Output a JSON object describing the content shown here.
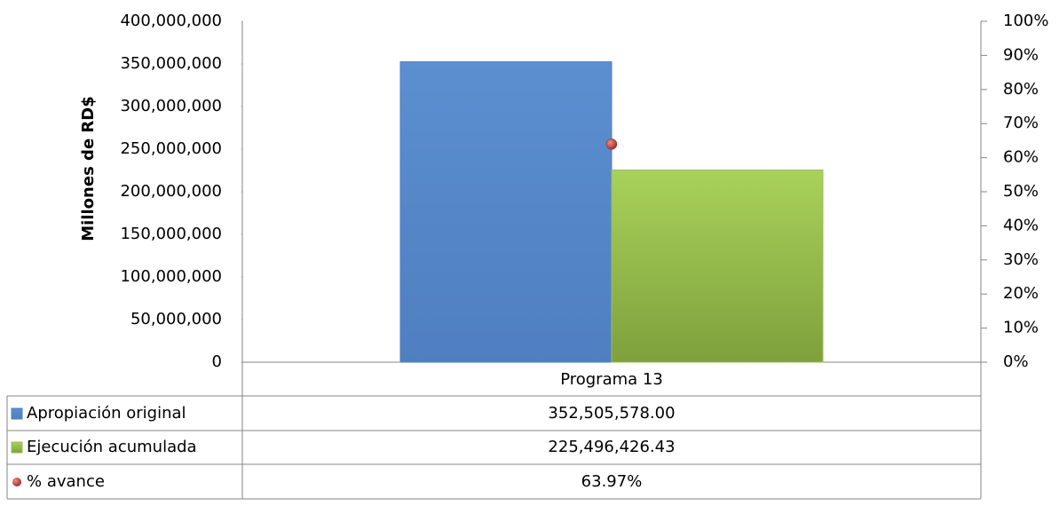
{
  "chart_data": {
    "type": "bar",
    "y_label": "Millones de RD$",
    "categories": [
      "Programa 13"
    ],
    "series": [
      {
        "name": "Apropiación original",
        "color": "#4f81bd",
        "values": [
          352505578.0
        ],
        "value_labels": [
          "352,505,578.00"
        ]
      },
      {
        "name": "Ejecución acumulada",
        "color": "#9bbb59",
        "values": [
          225496426.43
        ],
        "value_labels": [
          "225,496,426.43"
        ]
      },
      {
        "name": "% avance",
        "color": "#c0504d",
        "axis": "y2",
        "type": "scatter",
        "values": [
          63.97
        ],
        "value_labels": [
          "63.97%"
        ]
      }
    ],
    "ylim": [
      0,
      400000000
    ],
    "yticks": [
      0,
      {
        "value": 50000000,
        "label": "50,000,000"
      },
      {
        "value": 100000000,
        "label": "100,000,000"
      },
      {
        "value": 150000000,
        "label": "150,000,000"
      },
      {
        "value": 200000000,
        "label": "200,000,000"
      },
      {
        "value": 250000000,
        "label": "250,000,000"
      },
      {
        "value": 300000000,
        "label": "300,000,000"
      },
      {
        "value": 350000000,
        "label": "350,000,000"
      },
      {
        "value": 400000000,
        "label": "400,000,000"
      }
    ],
    "y2lim": [
      0,
      100
    ],
    "y2ticks": [
      {
        "value": 0,
        "label": "0%"
      },
      {
        "value": 10,
        "label": "10%"
      },
      {
        "value": 20,
        "label": "20%"
      },
      {
        "value": 30,
        "label": "30%"
      },
      {
        "value": 40,
        "label": "40%"
      },
      {
        "value": 50,
        "label": "50%"
      },
      {
        "value": 60,
        "label": "60%"
      },
      {
        "value": 70,
        "label": "70%"
      },
      {
        "value": 80,
        "label": "80%"
      },
      {
        "value": 90,
        "label": "90%"
      },
      {
        "value": 100,
        "label": "100%"
      }
    ],
    "data_table": true
  }
}
